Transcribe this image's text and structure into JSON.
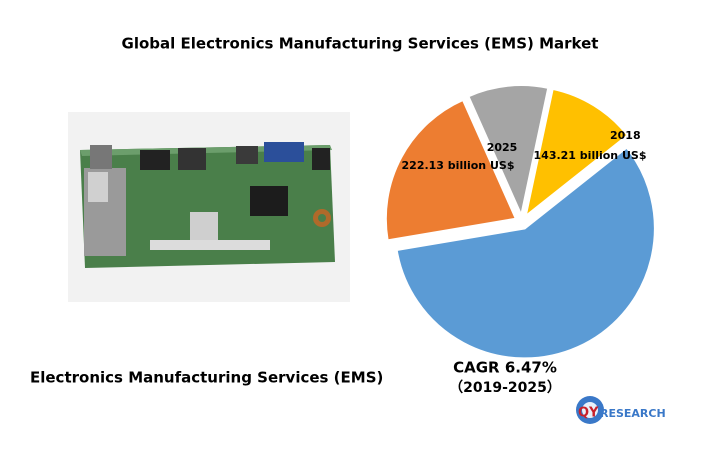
{
  "chart_data": {
    "type": "pie",
    "title": "Global Electronics Manufacturing Services (EMS) Market",
    "values": [
      11,
      58,
      21,
      10
    ],
    "colors": [
      "#ffc000",
      "#5b9bd5",
      "#ed7d31",
      "#a5a5a5"
    ],
    "annotations": [
      {
        "label": "2018",
        "text": "143.21 billion US$"
      },
      {
        "label": "2025",
        "text": "222.13 billion US$"
      }
    ],
    "cagr": "CAGR 6.47%",
    "period": "（2019-2025）"
  },
  "caption": "Electronics Manufacturing Services (EMS)",
  "logo": {
    "mark": "QY",
    "text": "RESEARCH"
  }
}
